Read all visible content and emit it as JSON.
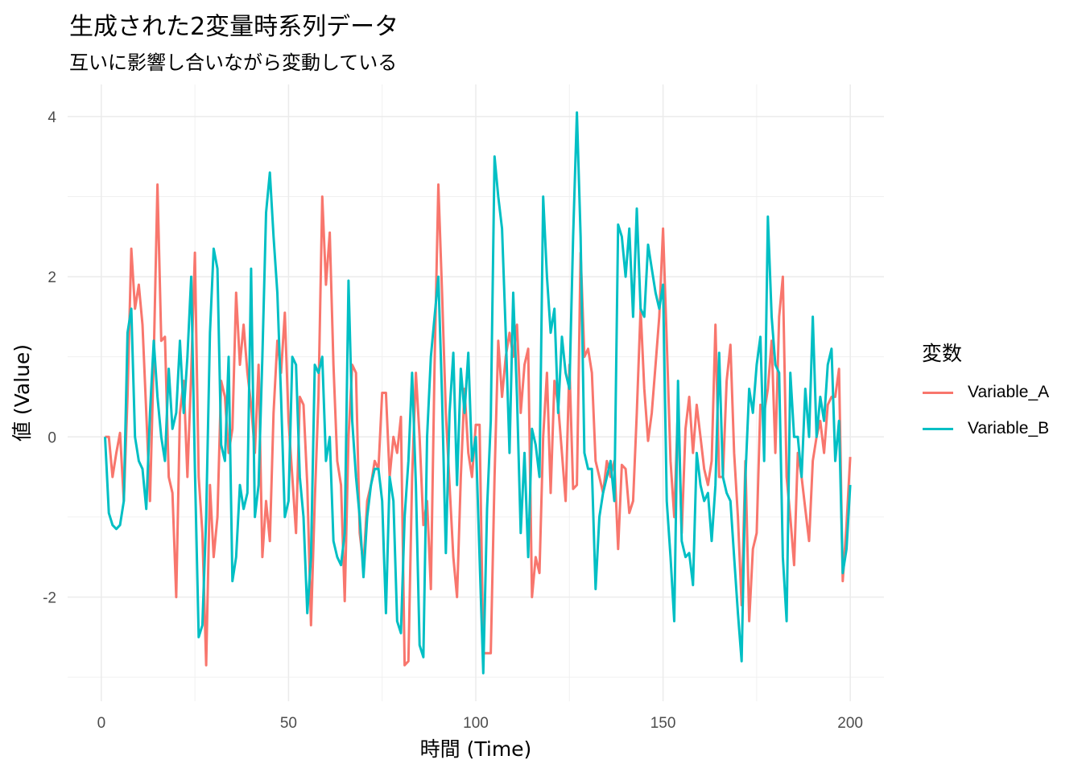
{
  "chart_data": {
    "type": "line",
    "title": "生成された2変量時系列データ",
    "subtitle": "互いに影響し合いながら変動している",
    "xlabel": "時間 (Time)",
    "ylabel": "値 (Value)",
    "xlim": [
      -9,
      209
    ],
    "ylim": [
      -3.3,
      4.4
    ],
    "xticks": [
      0,
      50,
      100,
      150,
      200
    ],
    "yticks": [
      -2,
      0,
      2,
      4
    ],
    "xtick_labels": [
      "0",
      "50",
      "100",
      "150",
      "200"
    ],
    "ytick_labels": [
      "-2",
      "0",
      "2",
      "4"
    ],
    "grid": true,
    "legend": {
      "title": "変数",
      "position": "right"
    },
    "series": [
      {
        "name": "Variable_A",
        "color": "#F8766D",
        "values": [
          0,
          0,
          -0.5,
          -0.2,
          0.05,
          -0.8,
          0.5,
          2.35,
          1.6,
          1.9,
          1.4,
          0.3,
          -0.8,
          1.0,
          3.15,
          1.2,
          1.25,
          -0.5,
          -0.7,
          -2.0,
          0.3,
          0.7,
          -0.5,
          0.8,
          2.3,
          -0.5,
          -1.2,
          -2.85,
          -0.6,
          -1.5,
          -1.0,
          0.7,
          0.5,
          -0.2,
          0.1,
          1.8,
          0.9,
          1.4,
          0.8,
          0.4,
          -0.2,
          0.9,
          -1.5,
          -0.8,
          -1.3,
          0.3,
          1.2,
          0.8,
          1.55,
          0.2,
          -0.5,
          -1.2,
          0.5,
          0.4,
          -0.6,
          -2.35,
          -0.8,
          0.5,
          3.0,
          1.9,
          2.55,
          0.9,
          -0.3,
          -0.6,
          -2.05,
          0.0,
          0.9,
          0.8,
          -1.2,
          -1.6,
          -0.8,
          -0.6,
          -0.3,
          -0.4,
          0.55,
          0.55,
          -0.5,
          0.0,
          -0.2,
          0.25,
          -2.85,
          -2.8,
          -0.5,
          0.8,
          0.0,
          -1.1,
          -0.8,
          -1.9,
          0.9,
          3.15,
          1.8,
          0.3,
          -0.6,
          -1.5,
          -2.0,
          -0.5,
          0.6,
          -0.2,
          -0.5,
          0.15,
          0.15,
          -2.7,
          -2.7,
          -2.7,
          -0.5,
          1.2,
          0.5,
          1.0,
          1.3,
          1.0,
          1.4,
          0.3,
          0.9,
          1.1,
          -2.0,
          -1.5,
          -1.7,
          0.0,
          0.8,
          -0.7,
          0.7,
          0.4,
          -0.2,
          -0.8,
          0.9,
          -0.65,
          -0.6,
          2.3,
          1.0,
          1.1,
          0.8,
          -0.3,
          -0.5,
          -0.7,
          -0.3,
          -0.5,
          -0.3,
          -1.4,
          -0.35,
          -0.4,
          -0.95,
          -0.8,
          0.3,
          1.6,
          0.6,
          -0.05,
          0.3,
          0.9,
          1.5,
          2.6,
          1.2,
          -0.3,
          -1.0,
          0.4,
          -1.2,
          0.1,
          0.5,
          -0.2,
          0.4,
          0.0,
          -0.4,
          -0.6,
          -0.3,
          1.4,
          -0.5,
          -0.5,
          0.7,
          1.15,
          -0.2,
          -1.0,
          -2.1,
          -0.3,
          -2.3,
          -1.4,
          -1.2,
          0.4,
          0.3,
          0.6,
          1.2,
          -0.2,
          1.5,
          2.0,
          -0.5,
          -1.0,
          -1.6,
          -0.2,
          -0.5,
          -0.9,
          -1.3,
          -0.3,
          0.0,
          0.2,
          -0.2,
          0.4,
          0.5,
          0.5,
          0.85,
          -1.8,
          -1.1,
          -0.25
        ]
      },
      {
        "name": "Variable_B",
        "color": "#00BFC4",
        "values": [
          0,
          -0.95,
          -1.1,
          -1.15,
          -1.1,
          -0.8,
          1.3,
          1.6,
          0.0,
          -0.3,
          -0.4,
          -0.9,
          0.3,
          1.2,
          0.5,
          0.0,
          -0.3,
          0.85,
          0.1,
          0.3,
          1.2,
          0.3,
          1.0,
          2.0,
          -0.4,
          -2.5,
          -2.35,
          -1.0,
          1.3,
          2.35,
          2.1,
          -0.1,
          -0.3,
          1.0,
          -1.8,
          -1.5,
          -0.6,
          -0.9,
          -0.7,
          2.1,
          -1.0,
          -0.6,
          1.0,
          2.8,
          3.3,
          2.5,
          1.8,
          0.5,
          -1.0,
          -0.8,
          1.0,
          0.9,
          -0.5,
          -1.0,
          -2.2,
          -1.5,
          0.9,
          0.8,
          1.0,
          -0.3,
          0.0,
          -1.3,
          -1.5,
          -1.6,
          -1.2,
          1.95,
          0.2,
          -0.5,
          -1.0,
          -1.75,
          -1.0,
          -0.6,
          -0.4,
          -0.4,
          -0.8,
          -2.2,
          -0.5,
          -0.8,
          -2.3,
          -2.45,
          -1.0,
          -0.3,
          0.8,
          -0.6,
          -2.6,
          -2.75,
          0.0,
          1.0,
          1.5,
          2.0,
          0.5,
          -1.45,
          0.3,
          1.05,
          -0.6,
          0.85,
          0.3,
          1.05,
          -0.3,
          0.0,
          -1.5,
          -2.95,
          -0.9,
          0.2,
          3.5,
          3.0,
          2.6,
          1.3,
          -0.2,
          1.8,
          0.5,
          -1.2,
          -0.2,
          -1.5,
          0.1,
          -0.1,
          -0.5,
          3.0,
          2.0,
          1.3,
          1.6,
          0.3,
          1.25,
          0.8,
          0.6,
          2.5,
          4.05,
          2.5,
          -0.2,
          -0.4,
          -0.4,
          -1.9,
          -1.0,
          -0.7,
          -0.5,
          -0.3,
          -0.8,
          2.65,
          2.5,
          2.0,
          2.6,
          1.5,
          2.85,
          1.6,
          1.5,
          2.4,
          2.1,
          1.8,
          1.6,
          1.9,
          -0.8,
          -1.5,
          -2.3,
          0.7,
          -1.3,
          -1.5,
          -1.45,
          -1.85,
          -0.2,
          -0.6,
          -0.8,
          -0.7,
          -1.3,
          -0.6,
          1.05,
          -0.5,
          -0.7,
          -0.8,
          -1.5,
          -2.2,
          -2.8,
          -0.5,
          0.6,
          0.3,
          0.9,
          1.25,
          -0.3,
          2.75,
          1.5,
          0.9,
          0.8,
          -1.5,
          -2.3,
          0.8,
          0.0,
          0.0,
          -0.5,
          0.6,
          0.0,
          1.5,
          0.0,
          0.5,
          0.2,
          0.9,
          1.1,
          -0.3,
          0.2,
          -1.7,
          -1.4,
          -0.6
        ]
      }
    ]
  }
}
